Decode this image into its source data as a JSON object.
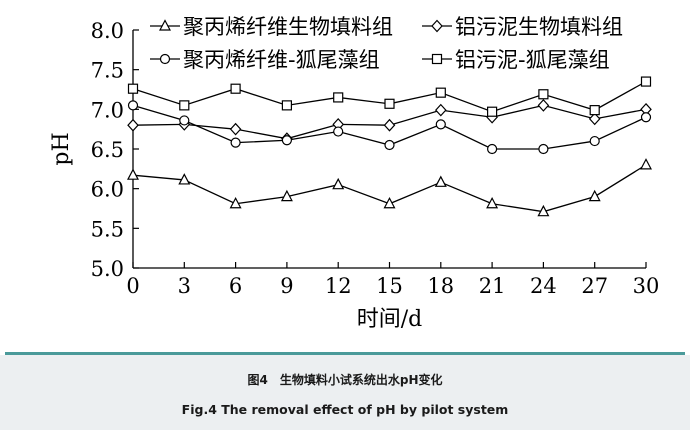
{
  "chart_data": {
    "type": "line",
    "title": "",
    "xlabel": "时间/d",
    "ylabel": "pH",
    "x": [
      0,
      3,
      6,
      9,
      12,
      15,
      18,
      21,
      24,
      27,
      30
    ],
    "xlim": [
      0,
      30
    ],
    "ylim": [
      5.0,
      8.0
    ],
    "x_ticks": [
      "0",
      "3",
      "6",
      "9",
      "12",
      "15",
      "18",
      "21",
      "24",
      "27",
      "30"
    ],
    "y_ticks": [
      "5.0",
      "5.5",
      "6.0",
      "6.5",
      "7.0",
      "7.5",
      "8.0"
    ],
    "grid": false,
    "legend_position": "top",
    "series": [
      {
        "name": "聚丙烯纤维生物填料组",
        "marker": "triangle",
        "values": [
          6.17,
          6.11,
          5.81,
          5.9,
          6.05,
          5.81,
          6.08,
          5.81,
          5.71,
          5.9,
          6.3
        ]
      },
      {
        "name": "铝污泥生物填料组",
        "marker": "diamond",
        "values": [
          6.8,
          6.81,
          6.75,
          6.63,
          6.81,
          6.8,
          6.99,
          6.9,
          7.05,
          6.88,
          7.0
        ]
      },
      {
        "name": "聚丙烯纤维-狐尾藻组",
        "marker": "circle",
        "values": [
          7.05,
          6.86,
          6.58,
          6.61,
          6.72,
          6.55,
          6.81,
          6.5,
          6.5,
          6.6,
          6.9
        ]
      },
      {
        "name": "铝污泥-狐尾藻组",
        "marker": "square",
        "values": [
          7.26,
          7.05,
          7.26,
          7.05,
          7.15,
          7.07,
          7.21,
          6.97,
          7.19,
          6.99,
          7.35
        ]
      }
    ]
  },
  "caption": {
    "cn": "图4　生物填料小试系统出水pH变化",
    "en": "Fig.4   The removal effect of pH by pilot system"
  }
}
